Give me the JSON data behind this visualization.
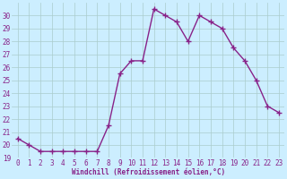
{
  "x": [
    0,
    1,
    2,
    3,
    4,
    5,
    6,
    7,
    8,
    9,
    10,
    11,
    12,
    13,
    14,
    15,
    16,
    17,
    18,
    19,
    20,
    21,
    22,
    23
  ],
  "y": [
    20.5,
    20.0,
    19.5,
    19.5,
    19.5,
    19.5,
    19.5,
    19.5,
    21.5,
    25.5,
    26.5,
    26.5,
    30.5,
    30.0,
    29.5,
    28.0,
    30.0,
    29.5,
    29.0,
    27.5,
    26.5,
    25.0,
    23.0,
    22.5
  ],
  "color": "#882288",
  "bg_color": "#cceeff",
  "grid_color": "#aacccc",
  "xlabel": "Windchill (Refroidissement éolien,°C)",
  "xlabel_color": "#882288",
  "ylim": [
    19,
    31
  ],
  "xlim": [
    -0.5,
    23.5
  ],
  "yticks": [
    19,
    20,
    21,
    22,
    23,
    24,
    25,
    26,
    27,
    28,
    29,
    30
  ],
  "xticks": [
    0,
    1,
    2,
    3,
    4,
    5,
    6,
    7,
    8,
    9,
    10,
    11,
    12,
    13,
    14,
    15,
    16,
    17,
    18,
    19,
    20,
    21,
    22,
    23
  ],
  "marker": "+",
  "linewidth": 1.0,
  "markersize": 4,
  "tick_fontsize": 5.5,
  "xlabel_fontsize": 5.5
}
